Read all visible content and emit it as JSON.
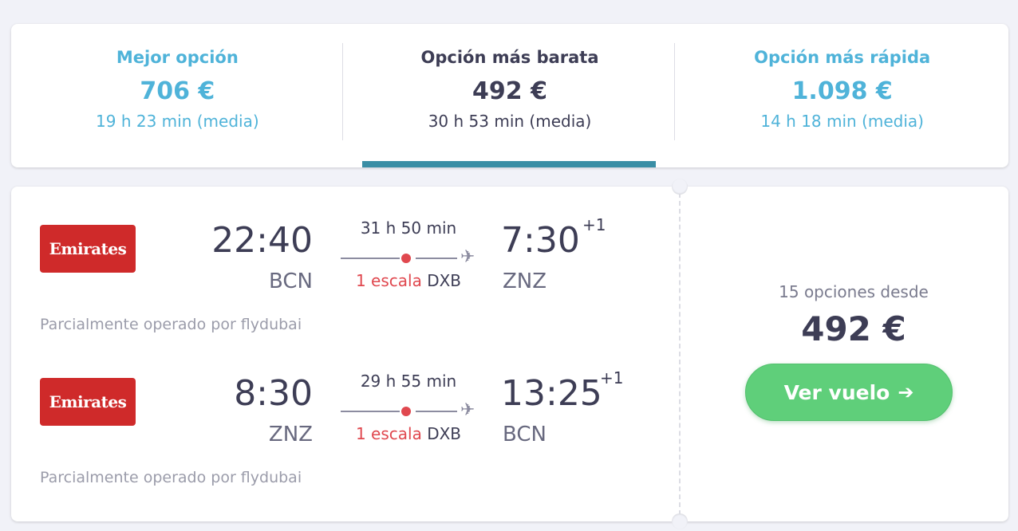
{
  "sort_tabs": [
    {
      "title": "Mejor opción",
      "price": "706 €",
      "duration": "19 h 23 min (media)"
    },
    {
      "title": "Opción más barata",
      "price": "492 €",
      "duration": "30 h 53 min (media)"
    },
    {
      "title": "Opción más rápida",
      "price": "1.098 €",
      "duration": "14 h 18 min (media)"
    }
  ],
  "colors": {
    "tab_blue": "#4fb3d9",
    "active_indicator": "#3a8ea5",
    "stop_red": "#e0484f",
    "cta_green": "#5fcf7a",
    "airline_red": "#cf2a2a"
  },
  "legs": [
    {
      "airline": "Emirates",
      "depart_time": "22:40",
      "depart_code": "BCN",
      "duration": "31 h 50 min",
      "stops_text": "1 escala",
      "via": "DXB",
      "arrive_time": "7:30",
      "day_offset": "+1",
      "arrive_code": "ZNZ",
      "operated_by": "Parcialmente operado por flydubai",
      "plane_icon": "plane-icon"
    },
    {
      "airline": "Emirates",
      "depart_time": "8:30",
      "depart_code": "ZNZ",
      "duration": "29 h 55 min",
      "stops_text": "1 escala",
      "via": "DXB",
      "arrive_time": "13:25",
      "day_offset": "+1",
      "arrive_code": "BCN",
      "operated_by": "Parcialmente operado por flydubai",
      "plane_icon": "plane-icon"
    }
  ],
  "offer": {
    "options_from": "15 opciones desde",
    "price": "492 €",
    "cta_label": "Ver vuelo",
    "cta_icon": "arrow-right-icon"
  }
}
